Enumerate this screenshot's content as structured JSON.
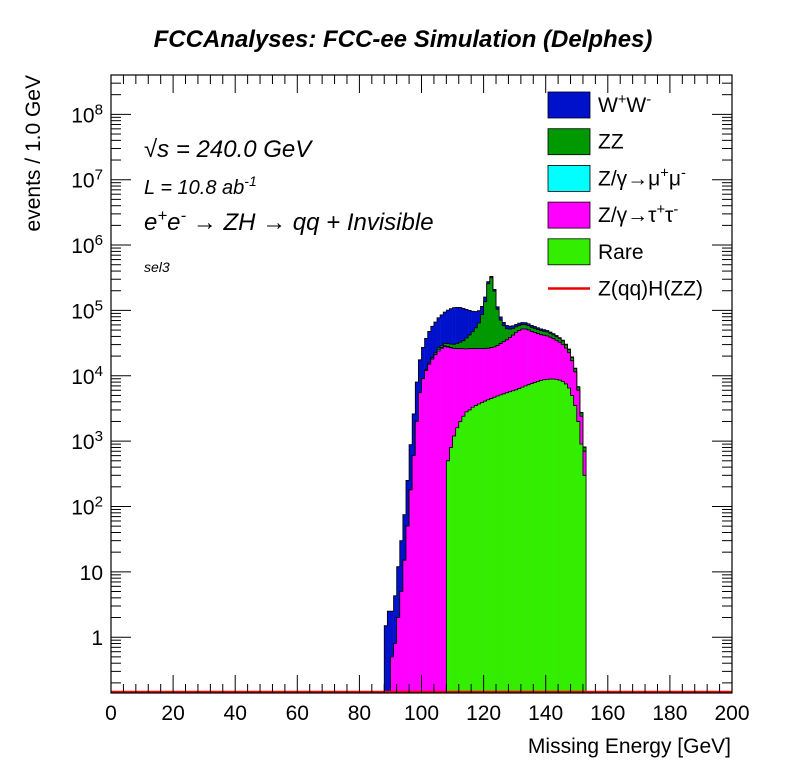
{
  "chart_data": {
    "type": "stacked-histogram",
    "title": "FCCAnalyses: FCC-ee Simulation (Delphes)",
    "xlabel": "Missing Energy [GeV]",
    "ylabel": "events / 1.0 GeV",
    "xlim": [
      0,
      200
    ],
    "ylim": [
      0.14,
      400000000
    ],
    "yscale": "log",
    "bin_width": 1.0,
    "x_ticks": [
      "0",
      "20",
      "40",
      "60",
      "80",
      "100",
      "120",
      "140",
      "160",
      "180",
      "200"
    ],
    "y_ticks": [
      {
        "value": 1,
        "base": "1",
        "exp": ""
      },
      {
        "value": 10,
        "base": "10",
        "exp": ""
      },
      {
        "value": 100,
        "base": "10",
        "exp": "2"
      },
      {
        "value": 1000,
        "base": "10",
        "exp": "3"
      },
      {
        "value": 10000,
        "base": "10",
        "exp": "4"
      },
      {
        "value": 100000,
        "base": "10",
        "exp": "5"
      },
      {
        "value": 1000000,
        "base": "10",
        "exp": "6"
      },
      {
        "value": 10000000,
        "base": "10",
        "exp": "7"
      },
      {
        "value": 100000000,
        "base": "10",
        "exp": "8"
      }
    ],
    "grid": false,
    "legend_position": "top-right",
    "annotations": {
      "sqrts": "√s = 240.0 GeV",
      "sqrts_sym": "√",
      "sqrts_s": "s",
      "sqrts_rest": " = 240.0 GeV",
      "lumi": "L = 10.8 ab",
      "lumi_exp": "-1",
      "process_parts": [
        {
          "t": "e",
          "sup": ""
        },
        {
          "t": "",
          "sup": "+"
        },
        {
          "t": "e",
          "sup": ""
        },
        {
          "t": "",
          "sup": "-"
        },
        {
          "t": " → ZH → qq + Invisible",
          "sup": ""
        }
      ],
      "selection": "sel3"
    },
    "x": [
      86,
      87,
      88,
      89,
      90,
      91,
      92,
      93,
      94,
      95,
      96,
      97,
      98,
      99,
      100,
      101,
      102,
      103,
      104,
      105,
      106,
      107,
      108,
      109,
      110,
      111,
      112,
      113,
      114,
      115,
      116,
      117,
      118,
      119,
      120,
      121,
      122,
      123,
      124,
      125,
      126,
      127,
      128,
      129,
      130,
      131,
      132,
      133,
      134,
      135,
      136,
      137,
      138,
      139,
      140,
      141,
      142,
      143,
      144,
      145,
      146,
      147,
      148,
      149,
      150,
      151,
      152,
      153,
      154
    ],
    "series": [
      {
        "name": "Rare",
        "legend": [
          {
            "t": "Rare",
            "sup": ""
          }
        ],
        "color": "#33ee00",
        "values": [
          0,
          0,
          0,
          0,
          0,
          0,
          0,
          0,
          0,
          0,
          0,
          0,
          0,
          0,
          0,
          0,
          0,
          0,
          0,
          0,
          0,
          0,
          500,
          800,
          1200,
          1600,
          2000,
          2400,
          2800,
          3000,
          3300,
          3500,
          3700,
          3900,
          4100,
          4300,
          4500,
          4700,
          4900,
          5100,
          5300,
          5500,
          5700,
          5900,
          6100,
          6400,
          6700,
          7000,
          7300,
          7600,
          7900,
          8200,
          8500,
          8700,
          8800,
          8900,
          8900,
          8800,
          8600,
          8200,
          7500,
          6500,
          5000,
          3500,
          2000,
          900,
          300,
          0,
          0
        ]
      },
      {
        "name": "Z/γ→τ+τ-",
        "legend": [
          {
            "t": "Z/γ→τ",
            "sup": ""
          },
          {
            "t": "",
            "sup": "+"
          },
          {
            "t": "τ",
            "sup": ""
          },
          {
            "t": "",
            "sup": "-"
          }
        ],
        "color": "#ff00ff",
        "values": [
          0,
          0,
          0,
          0,
          0.5,
          0.8,
          2,
          5,
          15,
          50,
          180,
          600,
          2000,
          5500,
          9000,
          12000,
          15000,
          18000,
          21000,
          24000,
          26000,
          28000,
          27000,
          26000,
          25000,
          24500,
          24000,
          23500,
          23000,
          23000,
          22800,
          22600,
          22400,
          22200,
          22000,
          22000,
          22500,
          23000,
          24000,
          26000,
          28000,
          30000,
          33000,
          36000,
          40000,
          43000,
          45000,
          45000,
          43000,
          40000,
          38000,
          36000,
          34000,
          33000,
          32000,
          30000,
          28000,
          26000,
          24000,
          22000,
          19000,
          16000,
          12000,
          8000,
          4000,
          1500,
          400,
          0,
          0
        ]
      },
      {
        "name": "Z/γ→μ+μ-",
        "legend": [
          {
            "t": "Z/γ→μ",
            "sup": ""
          },
          {
            "t": "",
            "sup": "+"
          },
          {
            "t": "μ",
            "sup": ""
          },
          {
            "t": "",
            "sup": "-"
          }
        ],
        "color": "#00ffff",
        "values": [
          0,
          0,
          0,
          0,
          0,
          0,
          0,
          0,
          0,
          0.3,
          1,
          3,
          10,
          25,
          35,
          55,
          60,
          85,
          95,
          1400,
          1000,
          700,
          500,
          200,
          100,
          60,
          35,
          25,
          20,
          17,
          15,
          12,
          10,
          10,
          15,
          9,
          12,
          7,
          15,
          10,
          7,
          10,
          6,
          9,
          5,
          14,
          7,
          10,
          8,
          6,
          12,
          9,
          5,
          11,
          7,
          9,
          12,
          8,
          6,
          5,
          10,
          4,
          7,
          12,
          5,
          3,
          2,
          0,
          0
        ]
      },
      {
        "name": "ZZ",
        "legend": [
          {
            "t": "ZZ",
            "sup": ""
          }
        ],
        "color": "#009900",
        "values": [
          0,
          0,
          0,
          0,
          0,
          0,
          0,
          0,
          0,
          0.3,
          1,
          3,
          10,
          30,
          100,
          300,
          600,
          1000,
          1400,
          1800,
          2200,
          2600,
          3000,
          3500,
          4000,
          5000,
          6500,
          8500,
          12000,
          16000,
          21000,
          28000,
          38000,
          60000,
          110000,
          230000,
          290000,
          170000,
          75000,
          40000,
          25000,
          17000,
          13000,
          11000,
          10000,
          9500,
          9000,
          8500,
          8000,
          7500,
          7000,
          6700,
          6500,
          6200,
          6000,
          5600,
          5200,
          4800,
          4400,
          3800,
          3200,
          2600,
          2000,
          1300,
          700,
          300,
          100,
          0,
          0
        ]
      },
      {
        "name": "W+W-",
        "legend": [
          {
            "t": "W",
            "sup": ""
          },
          {
            "t": "",
            "sup": "+"
          },
          {
            "t": "W",
            "sup": ""
          },
          {
            "t": "",
            "sup": "-"
          }
        ],
        "color": "#0011cc",
        "values": [
          0,
          0,
          1.5,
          2.5,
          2,
          3.5,
          10,
          25,
          60,
          200,
          700,
          2000,
          6000,
          12000,
          18000,
          25000,
          32000,
          38000,
          44000,
          50000,
          56000,
          63000,
          70000,
          76000,
          80000,
          80000,
          78000,
          73000,
          66000,
          58000,
          50000,
          42000,
          35000,
          29000,
          24000,
          19000,
          15000,
          12000,
          10000,
          8500,
          7200,
          6300,
          5700,
          5300,
          5000,
          4800,
          4600,
          4400,
          4200,
          4000,
          3700,
          3400,
          3100,
          2800,
          2500,
          2200,
          1900,
          1600,
          1300,
          1000,
          800,
          600,
          400,
          250,
          120,
          50,
          15,
          0,
          0
        ]
      }
    ],
    "signal": {
      "name": "Z(qq)H(ZZ)",
      "legend": [
        {
          "t": "Z(qq)H(ZZ)",
          "sup": ""
        }
      ],
      "color": "#ee0000",
      "values": [
        0,
        0,
        0,
        0,
        0,
        0,
        0,
        0,
        0,
        0,
        0,
        0,
        0,
        0,
        0,
        0,
        0,
        0,
        0,
        0,
        0,
        0,
        0,
        0,
        0,
        0,
        0,
        0,
        0,
        0,
        0,
        0,
        0,
        0,
        0,
        0,
        0,
        0,
        0,
        0,
        0,
        0,
        0,
        0,
        0,
        0,
        0,
        0,
        0,
        0,
        0,
        0,
        0,
        0,
        0,
        0,
        0,
        0,
        0,
        0,
        0,
        0,
        0,
        0,
        0,
        0,
        0,
        0,
        0
      ]
    },
    "legend_order": [
      "W+W-",
      "ZZ",
      "Z/γ→μ+μ-",
      "Z/γ→τ+τ-",
      "Rare",
      "Z(qq)H(ZZ)"
    ]
  }
}
